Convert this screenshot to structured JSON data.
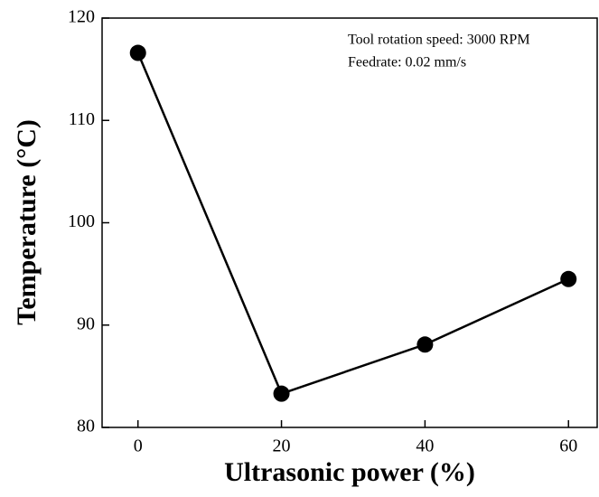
{
  "chart_data": {
    "type": "line",
    "x": [
      0,
      20,
      40,
      60
    ],
    "series": [
      {
        "values": [
          116.6,
          83.3,
          88.1,
          94.5
        ],
        "color": "#000000"
      }
    ],
    "xlabel": "Ultrasonic power (%)",
    "ylabel": "Temperature (°C)",
    "annotations": [
      "Tool rotation speed: 3000 RPM",
      "Feedrate: 0.02 mm/s"
    ],
    "xlim": [
      -5,
      64
    ],
    "xticks": [
      0,
      20,
      40,
      60
    ],
    "ylim": [
      80,
      120
    ],
    "yticks": [
      80,
      90,
      100,
      110,
      120
    ],
    "grid": false
  }
}
